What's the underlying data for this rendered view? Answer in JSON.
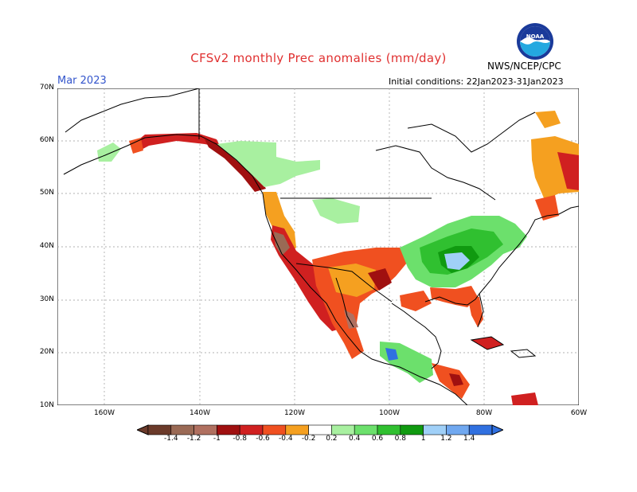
{
  "header": {
    "title": "CFSv2 monthly Prec anomalies (mm/day)",
    "month": "Mar 2023",
    "initial_conditions": "Initial conditions: 22Jan2023-31Jan2023",
    "agency": "NWS/NCEP/CPC",
    "logo_text": "NOAA"
  },
  "colors": {
    "title": "#e03030",
    "month": "#3355cc",
    "dry_1_4": "#6b3a2a",
    "dry_1_2": "#9a6a55",
    "dry_1_0": "#b07060",
    "dry_0_8": "#a01010",
    "dry_0_6": "#d02020",
    "dry_0_4": "#f05020",
    "dry_0_2": "#f5a020",
    "wet_0_2": "#a8f0a0",
    "wet_0_4": "#6ce06c",
    "wet_0_6": "#30c030",
    "wet_0_8": "#109a10",
    "wet_1_0": "#a0d0f8",
    "wet_1_2": "#70a8f0",
    "wet_1_4": "#3070e0"
  },
  "map": {
    "lat_labels": [
      "70N",
      "60N",
      "50N",
      "40N",
      "30N",
      "20N",
      "10N"
    ],
    "lon_labels": [
      "160W",
      "140W",
      "120W",
      "100W",
      "80W",
      "60W"
    ]
  },
  "colorbar": {
    "labels": [
      "-1.4",
      "-1.2",
      "-1",
      "-0.8",
      "-0.6",
      "-0.4",
      "-0.2",
      "0.2",
      "0.4",
      "0.6",
      "0.8",
      "1",
      "1.2",
      "1.4"
    ],
    "bins": [
      "#6b3a2a",
      "#9a6a55",
      "#b07060",
      "#a01010",
      "#d02020",
      "#f05020",
      "#f5a020",
      "#ffffff",
      "#a8f0a0",
      "#6ce06c",
      "#30c030",
      "#109a10",
      "#a0d0f8",
      "#70a8f0",
      "#3070e0"
    ]
  }
}
